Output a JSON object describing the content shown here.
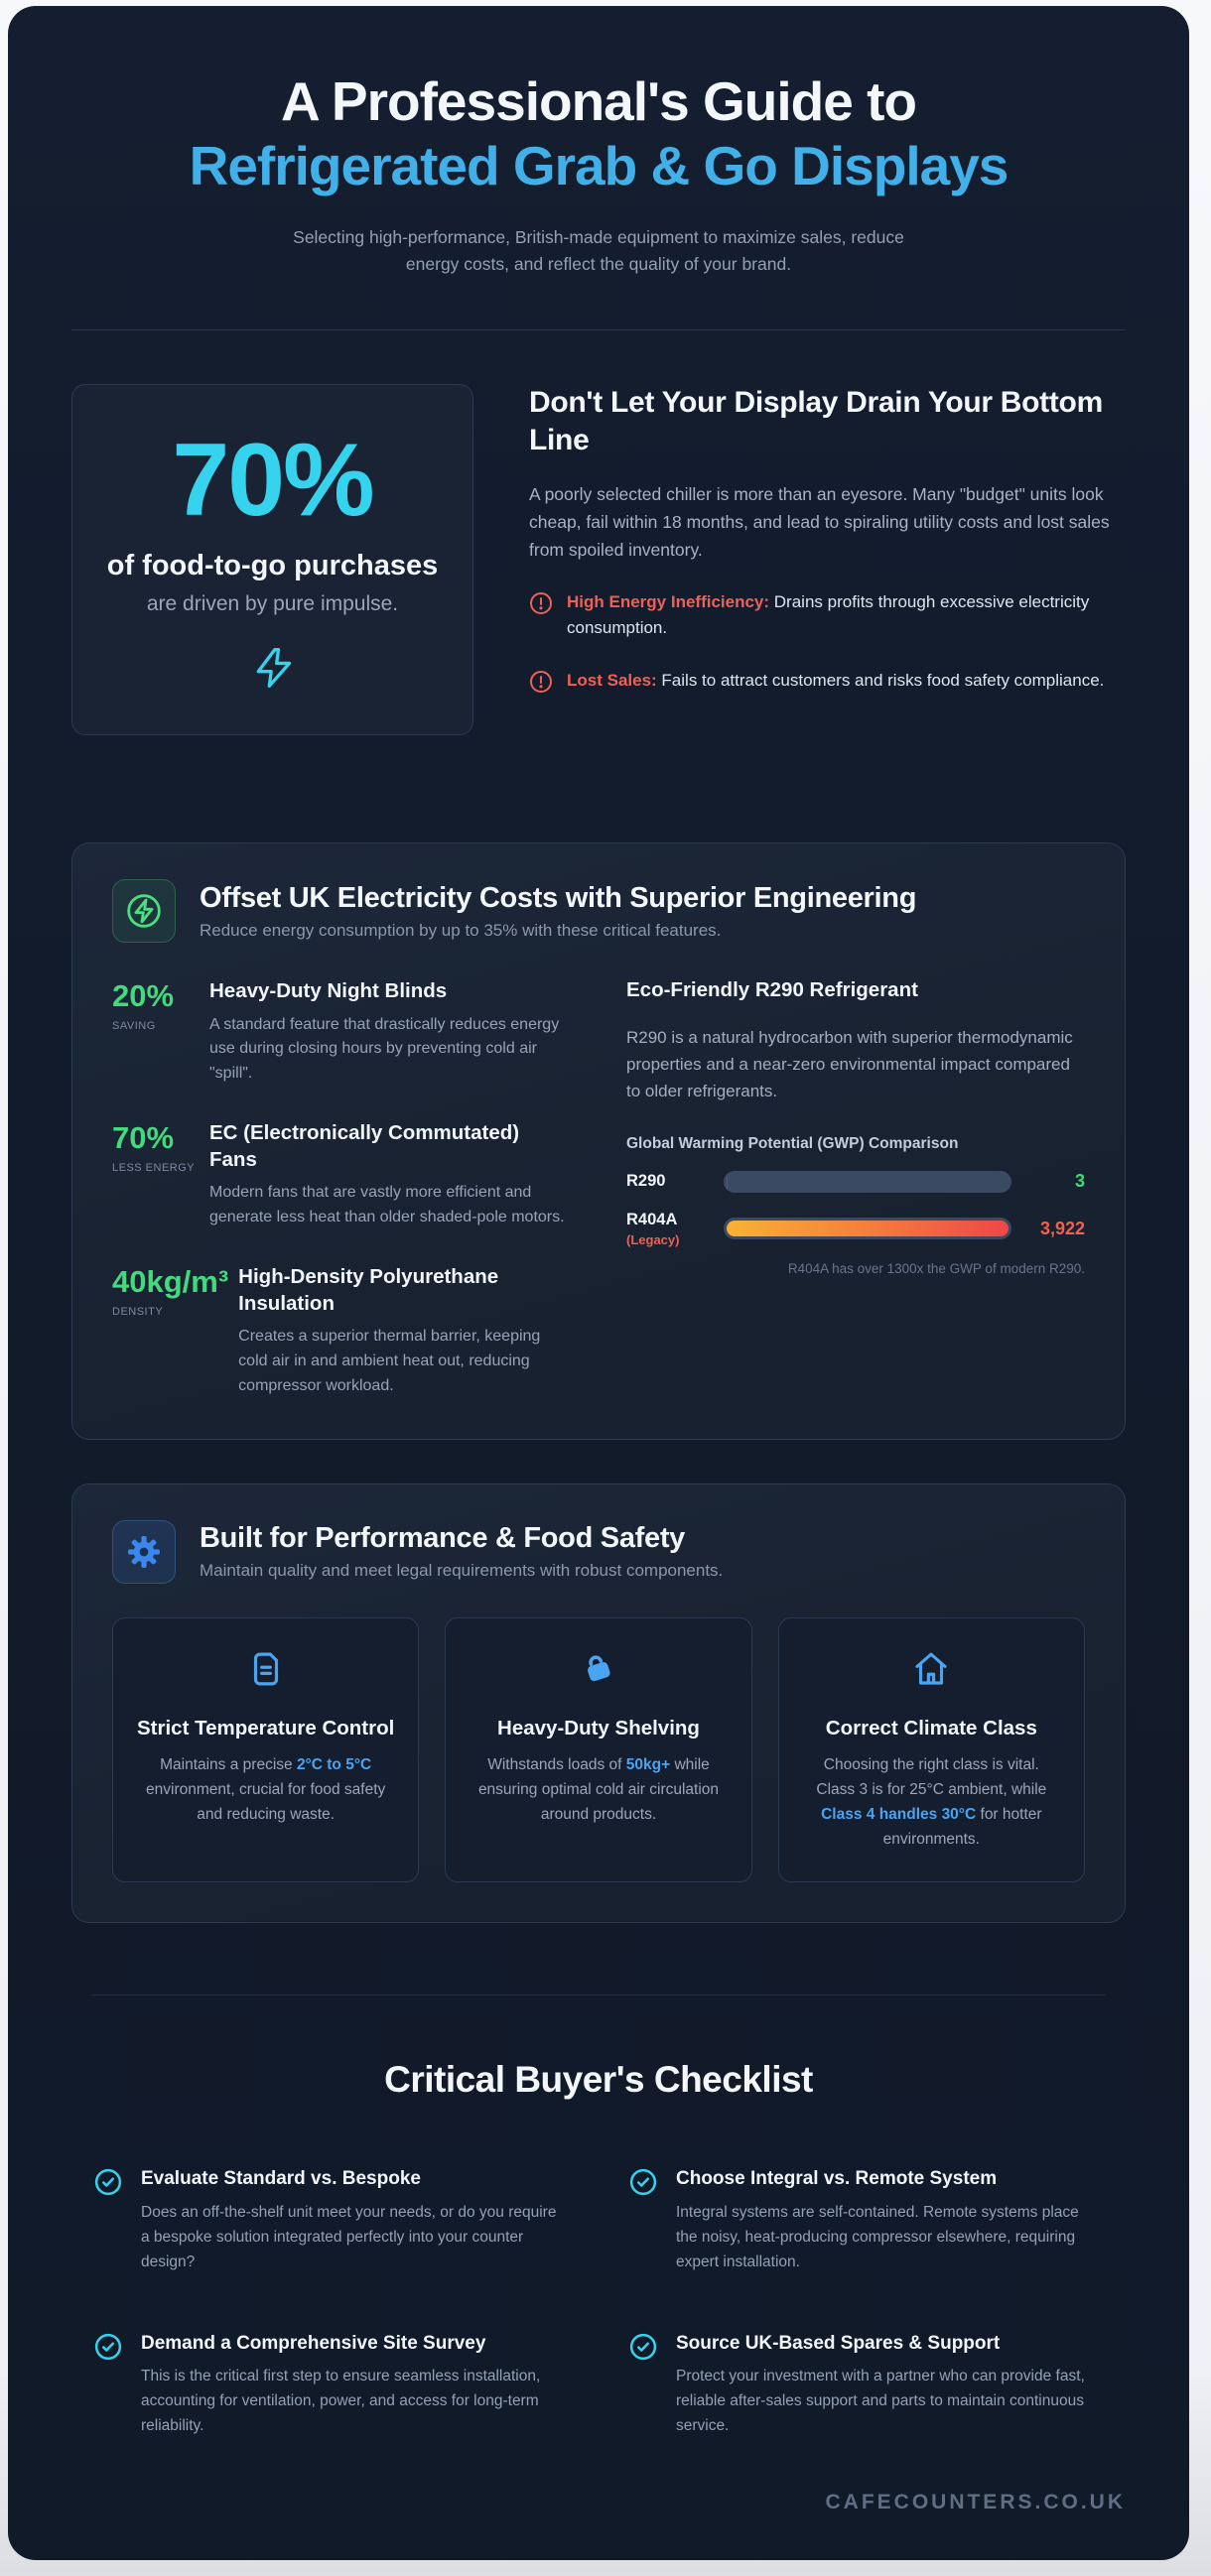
{
  "hero": {
    "title_line1": "A Professional's Guide to",
    "title_line2": "Refrigerated Grab & Go Displays",
    "subtitle": "Selecting high-performance, British-made equipment to maximize sales, reduce energy costs, and reflect the quality of your brand."
  },
  "impulse": {
    "stat_value": "70%",
    "stat_label": "of food-to-go purchases",
    "stat_sub": "are driven by pure impulse.",
    "heading": "Don't Let Your Display Drain Your Bottom Line",
    "body": "A poorly selected chiller is more than an eyesore. Many \"budget\" units look cheap, fail within 18 months, and lead to spiraling utility costs and lost sales from spoiled inventory.",
    "warnings": [
      {
        "label": "High Energy Inefficiency:",
        "text": " Drains profits through excessive electricity consumption."
      },
      {
        "label": "Lost Sales:",
        "text": " Fails to attract customers and risks food safety compliance."
      }
    ]
  },
  "energy": {
    "title": "Offset UK Electricity Costs with Superior Engineering",
    "subtitle": "Reduce energy consumption by up to 35% with these critical features.",
    "features": [
      {
        "stat": "20%",
        "stat_label": "SAVING",
        "title": "Heavy-Duty Night Blinds",
        "body": "A standard feature that drastically reduces energy use during closing hours by preventing cold air \"spill\"."
      },
      {
        "stat": "70%",
        "stat_label": "LESS ENERGY",
        "title": "EC (Electronically Commutated) Fans",
        "body": "Modern fans that are vastly more efficient and generate less heat than older shaded-pole motors."
      },
      {
        "stat": "40kg/m³",
        "stat_label": "DENSITY",
        "title": "High-Density Polyurethane Insulation",
        "body": "Creates a superior thermal barrier, keeping cold air in and ambient heat out, reducing compressor workload."
      }
    ],
    "refrigerant": {
      "title": "Eco-Friendly R290 Refrigerant",
      "body": "R290 is a natural hydrocarbon with superior thermodynamic properties and a near-zero environmental impact compared to older refrigerants."
    }
  },
  "chart_data": {
    "type": "bar",
    "orientation": "horizontal",
    "title": "Global Warming Potential (GWP) Comparison",
    "categories": [
      "R290",
      "R404A (Legacy)"
    ],
    "values": [
      3,
      3922
    ],
    "xlim": [
      0,
      3922
    ],
    "grid": false,
    "rows": [
      {
        "label": "R290",
        "sublabel": "",
        "value_label": "3"
      },
      {
        "label": "R404A",
        "sublabel": "(Legacy)",
        "value_label": "3,922"
      }
    ],
    "annotation": "R404A has over 1300x the GWP of modern R290."
  },
  "performance": {
    "title": "Built for Performance & Food Safety",
    "subtitle": "Maintain quality and meet legal requirements with robust components.",
    "cards": [
      {
        "title": "Strict Temperature Control",
        "body_prefix": "Maintains a precise ",
        "body_highlight": "2°C to 5°C",
        "body_suffix": " environment, crucial for food safety and reducing waste."
      },
      {
        "title": "Heavy-Duty Shelving",
        "body_prefix": "Withstands loads of ",
        "body_highlight": "50kg+",
        "body_suffix": " while ensuring optimal cold air circulation around products."
      },
      {
        "title": "Correct Climate Class",
        "body_prefix": "Choosing the right class is vital. Class 3 is for 25°C ambient, while ",
        "body_highlight": "Class 4 handles 30°C",
        "body_suffix": " for hotter environments."
      }
    ]
  },
  "checklist": {
    "title": "Critical Buyer's Checklist",
    "items": [
      {
        "title": "Evaluate Standard vs. Bespoke",
        "body": "Does an off-the-shelf unit meet your needs, or do you require a bespoke solution integrated perfectly into your counter design?"
      },
      {
        "title": "Choose Integral vs. Remote System",
        "body": "Integral systems are self-contained. Remote systems place the noisy, heat-producing compressor elsewhere, requiring expert installation."
      },
      {
        "title": "Demand a Comprehensive Site Survey",
        "body": "This is the critical first step to ensure seamless installation, accounting for ventilation, power, and access for long-term reliability."
      },
      {
        "title": "Source UK-Based Spares & Support",
        "body": "Protect your investment with a partner who can provide fast, reliable after-sales support and parts to maintain continuous service."
      }
    ]
  },
  "footer": {
    "brand": "CAFECOUNTERS.CO.UK"
  },
  "colors": {
    "accent_cyan": "#35d3ee",
    "accent_blue": "#4aa4f1",
    "hero_blue": "#41b0e8",
    "accent_green": "#43d97d",
    "accent_red": "#ef6157",
    "bar_gradient_start": "#f9b234",
    "bar_gradient_end": "#ee4747",
    "panel_bg": "#1a2334",
    "page_bg": "#121b2b"
  }
}
